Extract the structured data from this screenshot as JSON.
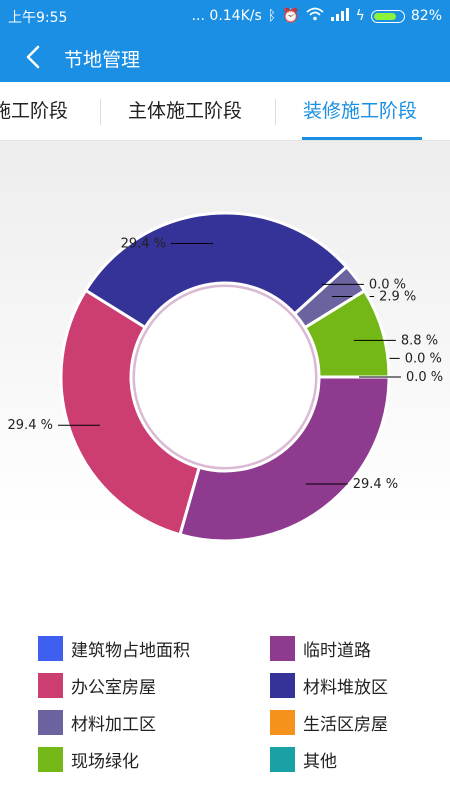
{
  "status": {
    "time": "上午9:55",
    "net_speed": "... 0.14K/s",
    "battery": "82%",
    "battery_level": 0.82
  },
  "header": {
    "title": "节地管理"
  },
  "tabs": [
    {
      "label": "施工阶段"
    },
    {
      "label": "主体施工阶段"
    },
    {
      "label": "装修施工阶段",
      "active": true
    }
  ],
  "colors": {
    "primary": "#1a8fe3",
    "series": [
      "#3f5ff0",
      "#8e3a8e",
      "#cc3d72",
      "#363398",
      "#6a639f",
      "#f5921e",
      "#74b817",
      "#1aa1a6"
    ]
  },
  "chart_data": {
    "type": "pie",
    "donut": true,
    "categories": [
      "建筑物占地面积",
      "临时道路",
      "办公室房屋",
      "材料堆放区",
      "材料加工区",
      "生活区房屋",
      "现场绿化",
      "其他"
    ],
    "values": [
      0.0,
      29.4,
      29.4,
      29.4,
      2.9,
      0.0,
      8.8,
      0.0
    ],
    "data_labels": [
      "0.0 %",
      "29.4 %",
      "29.4 %",
      "29.4 %",
      "2.9 %",
      "0.0 %",
      "8.8 %",
      "0.0 %"
    ],
    "legend_position": "bottom"
  }
}
